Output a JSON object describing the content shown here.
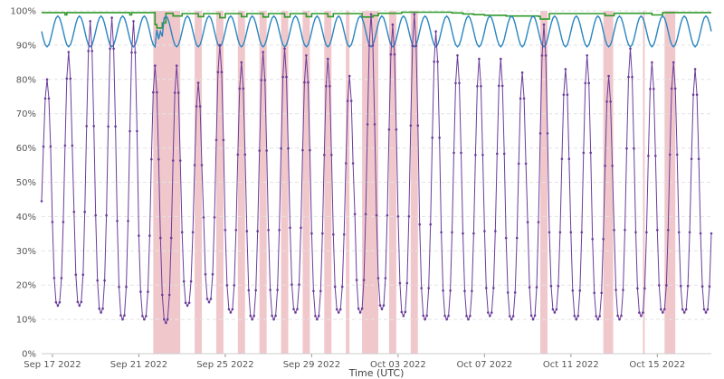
{
  "chart_data": {
    "type": "line",
    "title": "",
    "xlabel": "Time (UTC)",
    "ylabel": "",
    "x_range": [
      "2022-09-16T12:00",
      "2022-10-17T12:00"
    ],
    "ylim": [
      0,
      100
    ],
    "y_ticks": [
      0,
      10,
      20,
      30,
      40,
      50,
      60,
      70,
      80,
      90,
      100
    ],
    "y_tick_format": "%",
    "x_ticks": [
      "Sep 17 2022",
      "Sep 21 2022",
      "Sep 25 2022",
      "Sep 29 2022",
      "Oct 03 2022",
      "Oct 07 2022",
      "Oct 11 2022",
      "Oct 15 2022"
    ],
    "x_tick_dates": [
      "2022-09-17",
      "2022-09-21",
      "2022-09-25",
      "2022-09-29",
      "2022-10-03",
      "2022-10-07",
      "2022-10-11",
      "2022-10-15"
    ],
    "grid": true,
    "highlight_color": "#f0c8cc",
    "highlight_periods": [
      [
        "2022-09-21T16:00",
        "2022-09-22T22:00"
      ],
      [
        "2022-09-23T14:00",
        "2022-09-23T22:00"
      ],
      [
        "2022-09-24T14:00",
        "2022-09-24T22:00"
      ],
      [
        "2022-09-25T14:00",
        "2022-09-25T22:00"
      ],
      [
        "2022-09-26T14:00",
        "2022-09-26T22:00"
      ],
      [
        "2022-09-27T14:00",
        "2022-09-27T22:00"
      ],
      [
        "2022-09-28T14:00",
        "2022-09-28T22:00"
      ],
      [
        "2022-09-29T14:00",
        "2022-09-29T22:00"
      ],
      [
        "2022-09-30T14:00",
        "2022-09-30T18:00"
      ],
      [
        "2022-10-01T08:00",
        "2022-10-02T02:00"
      ],
      [
        "2022-10-02T14:00",
        "2022-10-02T22:00"
      ],
      [
        "2022-10-03T14:00",
        "2022-10-03T22:00"
      ],
      [
        "2022-10-09T14:00",
        "2022-10-09T22:00"
      ],
      [
        "2022-10-12T12:00",
        "2022-10-12T23:00"
      ],
      [
        "2022-10-14T08:00",
        "2022-10-14T10:00"
      ],
      [
        "2022-10-15T08:00",
        "2022-10-15T20:00"
      ]
    ],
    "series": [
      {
        "color": "#2f9a2a",
        "style": "step",
        "points": [
          [
            "2022-09-16T12:00",
            99.5
          ],
          [
            "2022-09-17T12:00",
            99.5
          ],
          [
            "2022-09-17T14:00",
            98.8
          ],
          [
            "2022-09-17T16:00",
            99.5
          ],
          [
            "2022-09-20T12:00",
            99.5
          ],
          [
            "2022-09-20T14:00",
            98.8
          ],
          [
            "2022-09-20T16:00",
            99.5
          ],
          [
            "2022-09-21T16:00",
            99.5
          ],
          [
            "2022-09-21T18:00",
            96
          ],
          [
            "2022-09-21T20:00",
            95
          ],
          [
            "2022-09-22T00:00",
            95
          ],
          [
            "2022-09-22T02:00",
            96.5
          ],
          [
            "2022-09-22T06:00",
            99.3
          ],
          [
            "2022-09-22T12:00",
            99.3
          ],
          [
            "2022-09-22T14:00",
            98.5
          ],
          [
            "2022-09-22T20:00",
            98.5
          ],
          [
            "2022-09-23T00:00",
            99.2
          ],
          [
            "2022-09-23T16:00",
            99.2
          ],
          [
            "2022-09-23T18:00",
            98.3
          ],
          [
            "2022-09-24T00:00",
            99.2
          ],
          [
            "2022-09-24T16:00",
            99.2
          ],
          [
            "2022-09-24T18:00",
            98
          ],
          [
            "2022-09-25T00:00",
            99.2
          ],
          [
            "2022-09-25T16:00",
            99.2
          ],
          [
            "2022-09-25T18:00",
            98.3
          ],
          [
            "2022-09-26T00:00",
            99.2
          ],
          [
            "2022-09-26T16:00",
            99.2
          ],
          [
            "2022-09-26T18:00",
            98.2
          ],
          [
            "2022-09-27T00:00",
            99.2
          ],
          [
            "2022-09-27T16:00",
            99.2
          ],
          [
            "2022-09-27T18:00",
            98.2
          ],
          [
            "2022-09-28T00:00",
            99.2
          ],
          [
            "2022-09-28T16:00",
            99.2
          ],
          [
            "2022-09-28T18:00",
            98.3
          ],
          [
            "2022-09-29T00:00",
            99.2
          ],
          [
            "2022-09-29T16:00",
            99.2
          ],
          [
            "2022-09-29T18:00",
            98.3
          ],
          [
            "2022-09-30T00:00",
            99.2
          ],
          [
            "2022-10-01T06:00",
            99.2
          ],
          [
            "2022-10-01T08:00",
            98.2
          ],
          [
            "2022-10-01T20:00",
            98.6
          ],
          [
            "2022-10-02T02:00",
            99.3
          ],
          [
            "2022-10-03T00:00",
            99.3
          ],
          [
            "2022-10-03T04:00",
            99.6
          ],
          [
            "2022-10-05T12:00",
            99.4
          ],
          [
            "2022-10-06T00:00",
            99.1
          ],
          [
            "2022-10-06T12:00",
            98.9
          ],
          [
            "2022-10-07T00:00",
            98.7
          ],
          [
            "2022-10-08T00:00",
            98.5
          ],
          [
            "2022-10-09T12:00",
            98.4
          ],
          [
            "2022-10-09T14:00",
            97.6
          ],
          [
            "2022-10-09T22:00",
            97.6
          ],
          [
            "2022-10-10T00:00",
            99.2
          ],
          [
            "2022-10-12T12:00",
            99.2
          ],
          [
            "2022-10-12T14:00",
            98.6
          ],
          [
            "2022-10-13T00:00",
            99.3
          ],
          [
            "2022-10-14T16:00",
            99.3
          ],
          [
            "2022-10-14T18:00",
            98.8
          ],
          [
            "2022-10-15T04:00",
            98.8
          ],
          [
            "2022-10-15T06:00",
            99.5
          ],
          [
            "2022-10-17T12:00",
            99.5
          ]
        ]
      },
      {
        "color": "#2a86c0",
        "style": "line",
        "model": "daily",
        "start": "2022-09-16T12:00",
        "end": "2022-10-17T12:00",
        "step_hours": 2,
        "low": 89.5,
        "high": 98.5,
        "peak_hour": 6,
        "dips": [
          [
            "2022-09-21T20:00",
            94.5
          ],
          [
            "2022-09-22T02:00",
            92.5
          ]
        ]
      },
      {
        "color": "#6a3d9a",
        "style": "line-markers",
        "model": "daily",
        "start": "2022-09-16T12:00",
        "end": "2022-10-17T12:00",
        "step_hours": 2,
        "daily_peak": [
          [
            "2022-09-16",
            80
          ],
          [
            "2022-09-17",
            88
          ],
          [
            "2022-09-18",
            97
          ],
          [
            "2022-09-19",
            98
          ],
          [
            "2022-09-20",
            97
          ],
          [
            "2022-09-21",
            84
          ],
          [
            "2022-09-22",
            84
          ],
          [
            "2022-09-23",
            79
          ],
          [
            "2022-09-24",
            90
          ],
          [
            "2022-09-25",
            85
          ],
          [
            "2022-09-26",
            88
          ],
          [
            "2022-09-27",
            89
          ],
          [
            "2022-09-28",
            87
          ],
          [
            "2022-09-29",
            86
          ],
          [
            "2022-09-30",
            81
          ],
          [
            "2022-10-01",
            99
          ],
          [
            "2022-10-02",
            96
          ],
          [
            "2022-10-03",
            99
          ],
          [
            "2022-10-04",
            94
          ],
          [
            "2022-10-05",
            87
          ],
          [
            "2022-10-06",
            86
          ],
          [
            "2022-10-07",
            86
          ],
          [
            "2022-10-08",
            82
          ],
          [
            "2022-10-09",
            96
          ],
          [
            "2022-10-10",
            83
          ],
          [
            "2022-10-11",
            87
          ],
          [
            "2022-10-12",
            81
          ],
          [
            "2022-10-13",
            89
          ],
          [
            "2022-10-14",
            85
          ],
          [
            "2022-10-15",
            85
          ],
          [
            "2022-10-16",
            83
          ],
          [
            "2022-10-17",
            82
          ]
        ],
        "daily_trough": [
          [
            "2022-09-16",
            27
          ],
          [
            "2022-09-17",
            14
          ],
          [
            "2022-09-18",
            14
          ],
          [
            "2022-09-19",
            12
          ],
          [
            "2022-09-20",
            10
          ],
          [
            "2022-09-21",
            10
          ],
          [
            "2022-09-22",
            9
          ],
          [
            "2022-09-23",
            14
          ],
          [
            "2022-09-24",
            15
          ],
          [
            "2022-09-25",
            12
          ],
          [
            "2022-09-26",
            10
          ],
          [
            "2022-09-27",
            10
          ],
          [
            "2022-09-28",
            12
          ],
          [
            "2022-09-29",
            10
          ],
          [
            "2022-09-30",
            12
          ],
          [
            "2022-10-01",
            12
          ],
          [
            "2022-10-02",
            13
          ],
          [
            "2022-10-03",
            11
          ],
          [
            "2022-10-04",
            10
          ],
          [
            "2022-10-05",
            10
          ],
          [
            "2022-10-06",
            10
          ],
          [
            "2022-10-07",
            11
          ],
          [
            "2022-10-08",
            10
          ],
          [
            "2022-10-09",
            10
          ],
          [
            "2022-10-10",
            12
          ],
          [
            "2022-10-11",
            10
          ],
          [
            "2022-10-12",
            10
          ],
          [
            "2022-10-13",
            10
          ],
          [
            "2022-10-14",
            11
          ],
          [
            "2022-10-15",
            12
          ],
          [
            "2022-10-16",
            12
          ],
          [
            "2022-10-17",
            12
          ]
        ],
        "peak_hour": 18
      }
    ]
  }
}
